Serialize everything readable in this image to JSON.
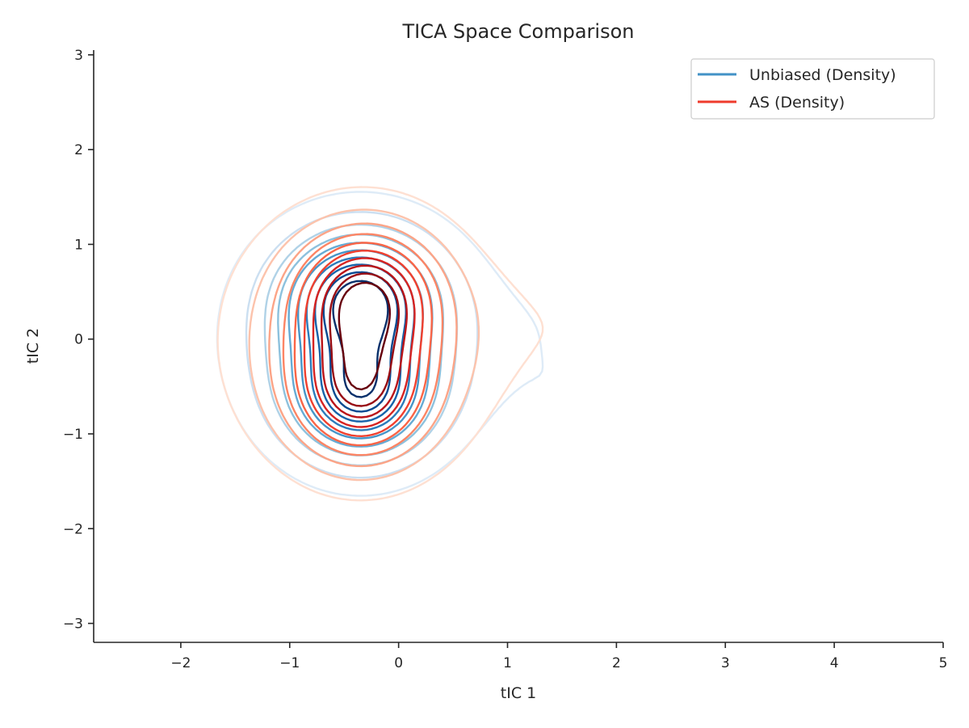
{
  "chart_data": {
    "type": "contour",
    "title": "TICA Space Comparison",
    "xlabel": "tIC 1",
    "ylabel": "tIC 2",
    "xlim": [
      -2.8,
      5.0
    ],
    "ylim": [
      -3.2,
      3.05
    ],
    "xticks": [
      -2,
      -1,
      0,
      1,
      2,
      3,
      4,
      5
    ],
    "yticks": [
      -3,
      -2,
      -1,
      0,
      1,
      2,
      3
    ],
    "xtick_labels": [
      "−2",
      "−1",
      "0",
      "1",
      "2",
      "3",
      "4",
      "5"
    ],
    "ytick_labels": [
      "−3",
      "−2",
      "−1",
      "0",
      "1",
      "2",
      "3"
    ],
    "grid": false,
    "legend_position": "top-right",
    "series": [
      {
        "name": "Unbiased (Density)",
        "legend_color": "#4292c6",
        "colormap": "Blues",
        "levels": 10,
        "components": [
          {
            "x": -0.35,
            "y": 0.45,
            "sx": 0.42,
            "sy": 0.42,
            "w": 0.55
          },
          {
            "x": -0.35,
            "y": -0.6,
            "sx": 0.42,
            "sy": 0.45,
            "w": 0.5
          },
          {
            "x": -0.35,
            "y": 0.0,
            "sx": 0.85,
            "sy": 0.95,
            "w": 0.35
          },
          {
            "x": 1.6,
            "y": 0.3,
            "sx": 0.45,
            "sy": 0.5,
            "w": 0.06
          },
          {
            "x": 1.6,
            "y": -0.7,
            "sx": 0.4,
            "sy": 0.45,
            "w": 0.07
          }
        ]
      },
      {
        "name": "AS (Density)",
        "legend_color": "#ef3b2c",
        "colormap": "Reds",
        "levels": 10,
        "components": [
          {
            "x": -0.3,
            "y": 0.45,
            "sx": 0.38,
            "sy": 0.42,
            "w": 0.55
          },
          {
            "x": -0.35,
            "y": -0.55,
            "sx": 0.4,
            "sy": 0.48,
            "w": 0.5
          },
          {
            "x": -0.35,
            "y": 0.0,
            "sx": 0.85,
            "sy": 1.0,
            "w": 0.38
          },
          {
            "x": 1.7,
            "y": 0.3,
            "sx": 0.6,
            "sy": 0.55,
            "w": 0.06
          },
          {
            "x": 2.0,
            "y": -0.4,
            "sx": 0.6,
            "sy": 0.6,
            "w": 0.045
          }
        ]
      }
    ],
    "colors": {
      "blues": [
        "#deebf7",
        "#c6dbef",
        "#9ecae1",
        "#6baed6",
        "#4292c6",
        "#2171b5",
        "#08519c",
        "#08306b"
      ],
      "reds": [
        "#fee0d2",
        "#fcbba1",
        "#fc9272",
        "#fb6a4a",
        "#ef3b2c",
        "#cb181d",
        "#a50f15",
        "#67000d"
      ]
    }
  }
}
